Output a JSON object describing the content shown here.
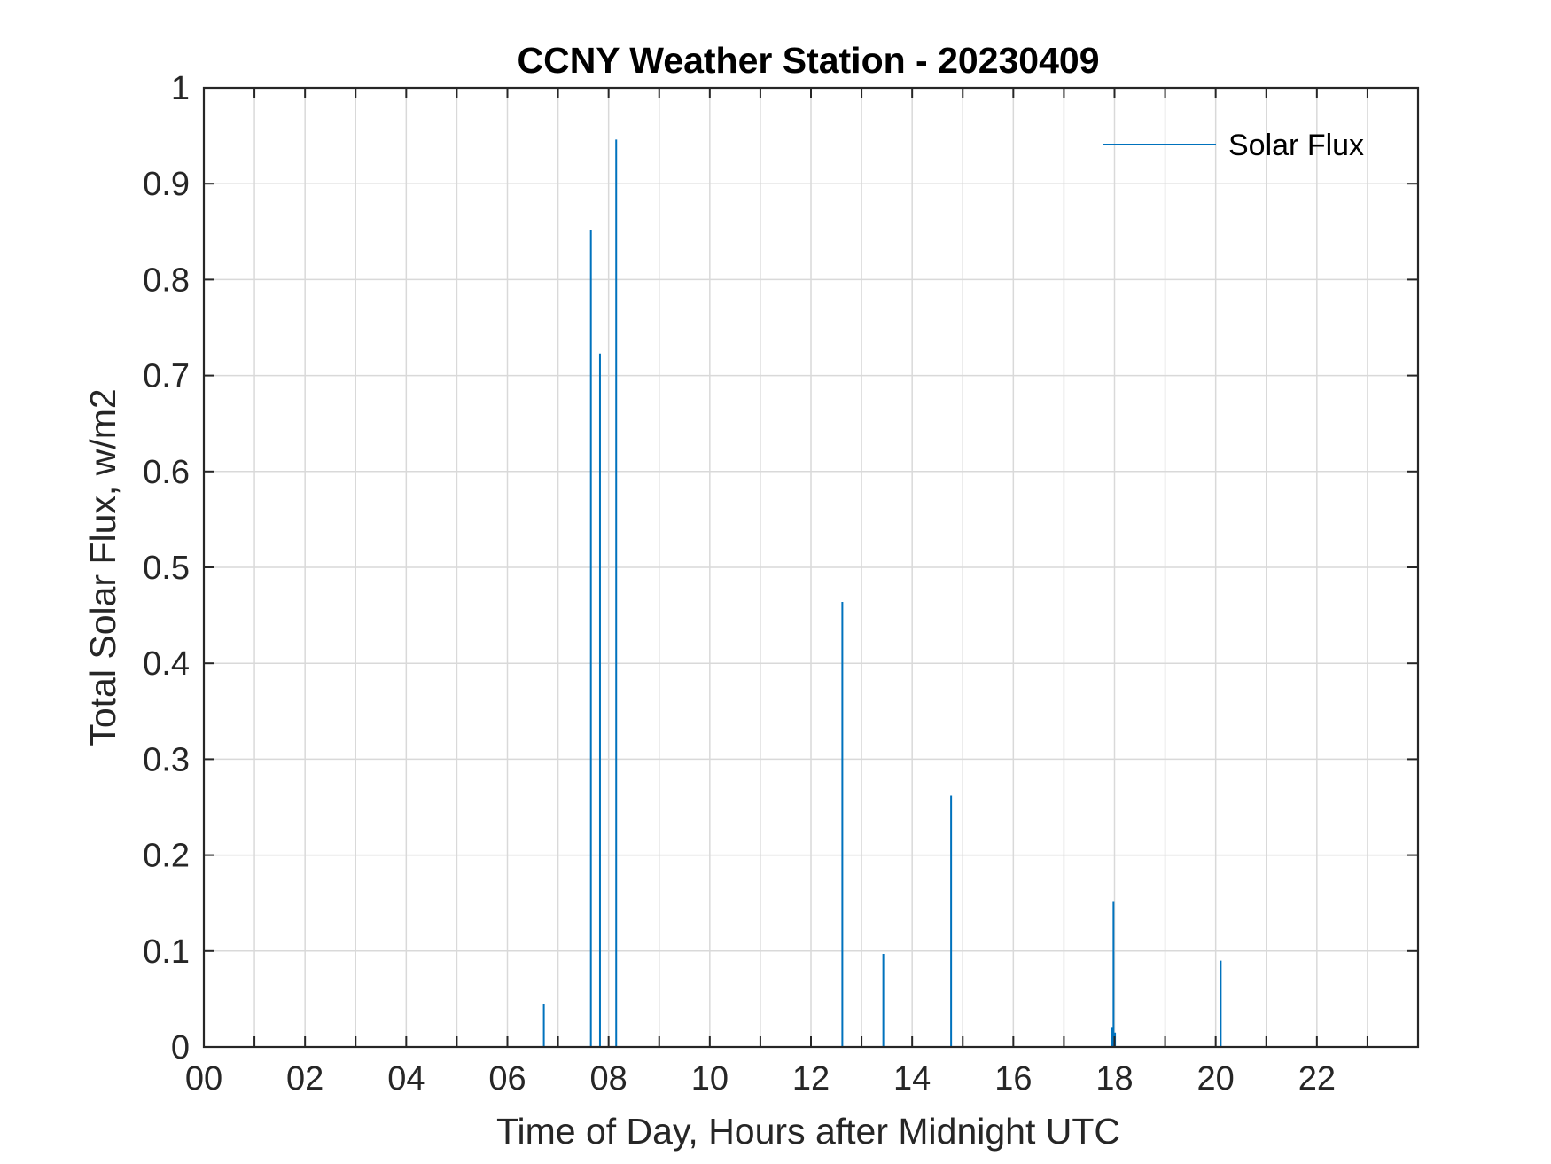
{
  "chart_data": {
    "type": "bar",
    "title": "CCNY Weather Station - 20230409",
    "xlabel": "Time of Day, Hours after Midnight UTC",
    "ylabel": "Total Solar Flux, w/m2",
    "xlim": [
      0,
      24
    ],
    "ylim": [
      0,
      1
    ],
    "x_ticks": [
      0,
      2,
      4,
      6,
      8,
      10,
      12,
      14,
      16,
      18,
      20,
      22
    ],
    "x_tick_labels": [
      "00",
      "02",
      "04",
      "06",
      "08",
      "10",
      "12",
      "14",
      "16",
      "18",
      "20",
      "22"
    ],
    "x_minor_grid": [
      1,
      3,
      5,
      7,
      9,
      11,
      13,
      15,
      17,
      19,
      21,
      23
    ],
    "y_ticks": [
      0,
      0.1,
      0.2,
      0.3,
      0.4,
      0.5,
      0.6,
      0.7,
      0.8,
      0.9,
      1
    ],
    "y_tick_labels": [
      "0",
      "0.1",
      "0.2",
      "0.3",
      "0.4",
      "0.5",
      "0.6",
      "0.7",
      "0.8",
      "0.9",
      "1"
    ],
    "grid": true,
    "legend": {
      "position": "top-right",
      "entries": [
        "Solar Flux"
      ]
    },
    "series": [
      {
        "name": "Solar Flux",
        "color": "#0072bd",
        "points": [
          {
            "x": 6.72,
            "y": 0.045
          },
          {
            "x": 7.65,
            "y": 0.852
          },
          {
            "x": 7.83,
            "y": 0.723
          },
          {
            "x": 8.15,
            "y": 0.946
          },
          {
            "x": 12.62,
            "y": 0.464
          },
          {
            "x": 13.43,
            "y": 0.097
          },
          {
            "x": 14.77,
            "y": 0.262
          },
          {
            "x": 17.95,
            "y": 0.02
          },
          {
            "x": 17.98,
            "y": 0.152
          },
          {
            "x": 18.01,
            "y": 0.015
          },
          {
            "x": 20.1,
            "y": 0.09
          }
        ]
      }
    ]
  }
}
